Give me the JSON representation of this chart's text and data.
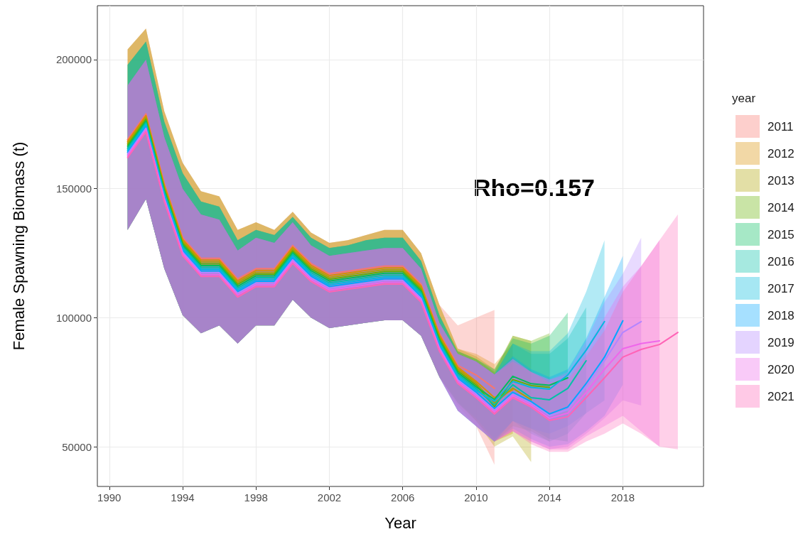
{
  "chart_data": {
    "type": "line",
    "xlabel": "Year",
    "ylabel": "Female Spawning Biomass (t)",
    "legend_title": "year",
    "annotations": [
      "Rho=0.157"
    ],
    "xlim": [
      1989.35,
      2022.4
    ],
    "xticks": [
      1990,
      1994,
      1998,
      2002,
      2006,
      2010,
      2014,
      2018
    ],
    "ylim": [
      34600,
      220900
    ],
    "yticks": [
      50000,
      100000,
      150000,
      200000
    ],
    "grid": true,
    "legend": "right",
    "marker": "none",
    "series": [
      {
        "name": "2011",
        "color": "#f8766d",
        "x": [
          1991,
          1992,
          1993,
          1994,
          1995,
          1996,
          1997,
          1998,
          1999,
          2000,
          2001,
          2002,
          2003,
          2004,
          2005,
          2006,
          2007,
          2008,
          2009,
          2010,
          2011
        ],
        "values": [
          169000,
          179000,
          152000,
          131000,
          123000,
          123000,
          115000,
          119000,
          119000,
          128000,
          121000,
          117000,
          118000,
          119000,
          120000,
          120000,
          113000,
          94000,
          81500,
          77800,
          72600
        ],
        "upper": [
          204000,
          212000,
          180000,
          160000,
          149000,
          147000,
          134000,
          137000,
          134000,
          141000,
          133000,
          129000,
          130000,
          132000,
          134000,
          134000,
          125000,
          105000,
          97000,
          100000,
          103000
        ],
        "lower": [
          134000,
          146000,
          119000,
          101000,
          94000,
          97000,
          90000,
          97000,
          97000,
          107000,
          100000,
          96000,
          97000,
          98000,
          99000,
          99000,
          93000,
          77000,
          66000,
          58000,
          43000
        ]
      },
      {
        "name": "2012",
        "color": "#db8e00",
        "x": [
          1991,
          1992,
          1993,
          1994,
          1995,
          1996,
          1997,
          1998,
          1999,
          2000,
          2001,
          2002,
          2003,
          2004,
          2005,
          2006,
          2007,
          2008,
          2009,
          2010,
          2011,
          2012
        ],
        "values": [
          168300,
          178300,
          151300,
          130300,
          122300,
          122300,
          114300,
          118300,
          118300,
          127300,
          120300,
          116300,
          117300,
          118300,
          119300,
          119300,
          112300,
          93300,
          80800,
          75300,
          69000,
          72000
        ],
        "upper": [
          204000,
          212000,
          180000,
          160000,
          149000,
          147000,
          134000,
          137000,
          134000,
          141000,
          133000,
          129000,
          130000,
          132000,
          134000,
          134000,
          125000,
          105000,
          88000,
          86000,
          82000,
          90000
        ],
        "lower": [
          134000,
          146000,
          119000,
          101000,
          94000,
          97000,
          90000,
          97000,
          97000,
          107000,
          100000,
          96000,
          97000,
          98000,
          99000,
          99000,
          93000,
          77000,
          68000,
          60000,
          52000,
          55000
        ]
      },
      {
        "name": "2013",
        "color": "#aea200",
        "x": [
          1991,
          1992,
          1993,
          1994,
          1995,
          1996,
          1997,
          1998,
          1999,
          2000,
          2001,
          2002,
          2003,
          2004,
          2005,
          2006,
          2007,
          2008,
          2009,
          2010,
          2011,
          2012,
          2013
        ],
        "values": [
          167600,
          177600,
          150600,
          129600,
          121600,
          121600,
          113600,
          117600,
          117600,
          126600,
          119600,
          115600,
          116600,
          117600,
          118600,
          118600,
          111600,
          92600,
          80100,
          74600,
          66900,
          72700,
          68200
        ],
        "upper": [
          204000,
          212000,
          180000,
          160000,
          149000,
          147000,
          134000,
          137000,
          134000,
          141000,
          133000,
          129000,
          130000,
          132000,
          134000,
          134000,
          125000,
          105000,
          88000,
          85000,
          80000,
          93000,
          91000
        ],
        "lower": [
          134000,
          146000,
          119000,
          101000,
          94000,
          97000,
          90000,
          97000,
          97000,
          107000,
          100000,
          96000,
          97000,
          98000,
          99000,
          99000,
          93000,
          77000,
          67000,
          60000,
          50000,
          54000,
          44000
        ]
      },
      {
        "name": "2014",
        "color": "#64b200",
        "x": [
          1991,
          1992,
          1993,
          1994,
          1995,
          1996,
          1997,
          1998,
          1999,
          2000,
          2001,
          2002,
          2003,
          2004,
          2005,
          2006,
          2007,
          2008,
          2009,
          2010,
          2011,
          2012,
          2013,
          2014
        ],
        "values": [
          166900,
          176900,
          149900,
          128900,
          120900,
          120900,
          112900,
          116900,
          116900,
          125900,
          118900,
          114900,
          115900,
          116900,
          117900,
          117900,
          110900,
          91900,
          79400,
          73900,
          65500,
          76000,
          73700,
          73000
        ],
        "upper": [
          198000,
          207000,
          176000,
          156000,
          145000,
          143000,
          130000,
          134000,
          132000,
          139000,
          131000,
          127000,
          128000,
          130000,
          131000,
          131000,
          122000,
          101000,
          87000,
          84000,
          79000,
          93000,
          91000,
          94000
        ],
        "lower": [
          134000,
          146000,
          119000,
          101000,
          94000,
          97000,
          90000,
          97000,
          97000,
          107000,
          100000,
          96000,
          97000,
          98000,
          99000,
          99000,
          93000,
          77000,
          67000,
          60000,
          52000,
          58000,
          56000,
          52000
        ]
      },
      {
        "name": "2015",
        "color": "#00bd5c",
        "x": [
          1991,
          1992,
          1993,
          1994,
          1995,
          1996,
          1997,
          1998,
          1999,
          2000,
          2001,
          2002,
          2003,
          2004,
          2005,
          2006,
          2007,
          2008,
          2009,
          2010,
          2011,
          2012,
          2013,
          2014,
          2015
        ],
        "values": [
          166200,
          176200,
          149200,
          128200,
          120200,
          120200,
          112200,
          116200,
          116200,
          125200,
          118200,
          114200,
          115200,
          116200,
          117200,
          117200,
          110200,
          91200,
          78700,
          73200,
          68300,
          77300,
          74400,
          73800,
          76700
        ],
        "upper": [
          198000,
          207000,
          176000,
          156000,
          145000,
          143000,
          130000,
          134000,
          132000,
          139000,
          131000,
          127000,
          128000,
          130000,
          131000,
          131000,
          122000,
          101000,
          87000,
          84000,
          80000,
          92000,
          90000,
          93000,
          102000
        ],
        "lower": [
          134000,
          146000,
          119000,
          101000,
          94000,
          97000,
          90000,
          97000,
          97000,
          107000,
          100000,
          96000,
          97000,
          98000,
          99000,
          99000,
          93000,
          77000,
          67000,
          61000,
          53000,
          60000,
          57000,
          53000,
          52000
        ]
      },
      {
        "name": "2016",
        "color": "#00c1a7",
        "x": [
          1991,
          1992,
          1993,
          1994,
          1995,
          1996,
          1997,
          1998,
          1999,
          2000,
          2001,
          2002,
          2003,
          2004,
          2005,
          2006,
          2007,
          2008,
          2009,
          2010,
          2011,
          2012,
          2013,
          2014,
          2015,
          2016
        ],
        "values": [
          165500,
          175500,
          148500,
          127500,
          119500,
          119500,
          111500,
          115500,
          115500,
          124500,
          117500,
          113500,
          114500,
          115500,
          116500,
          116500,
          109500,
          90500,
          78000,
          72500,
          66200,
          74000,
          69000,
          68200,
          72600,
          83300
        ],
        "upper": [
          198000,
          207000,
          176000,
          156000,
          145000,
          143000,
          130000,
          134000,
          132000,
          139000,
          131000,
          127000,
          128000,
          130000,
          131000,
          131000,
          122000,
          101000,
          86000,
          83000,
          78000,
          90000,
          86000,
          86000,
          92000,
          104000
        ],
        "lower": [
          134000,
          146000,
          119000,
          101000,
          94000,
          97000,
          90000,
          97000,
          97000,
          107000,
          100000,
          96000,
          97000,
          98000,
          99000,
          99000,
          93000,
          77000,
          64000,
          58000,
          52000,
          60000,
          55000,
          52000,
          55000,
          63000
        ]
      },
      {
        "name": "2017",
        "color": "#00bade",
        "x": [
          1991,
          1992,
          1993,
          1994,
          1995,
          1996,
          1997,
          1998,
          1999,
          2000,
          2001,
          2002,
          2003,
          2004,
          2005,
          2006,
          2007,
          2008,
          2009,
          2010,
          2011,
          2012,
          2013,
          2014,
          2015,
          2016,
          2017
        ],
        "values": [
          164800,
          174800,
          147800,
          126800,
          118800,
          118800,
          110800,
          114800,
          114800,
          123800,
          116800,
          112800,
          113800,
          114800,
          115800,
          115800,
          108800,
          89800,
          77300,
          71800,
          67600,
          75300,
          73000,
          72300,
          77800,
          87400,
          98500
        ],
        "upper": [
          198000,
          207000,
          176000,
          156000,
          145000,
          143000,
          130000,
          134000,
          132000,
          139000,
          131000,
          127000,
          128000,
          130000,
          131000,
          131000,
          122000,
          101000,
          86000,
          83000,
          78000,
          90000,
          87000,
          87000,
          94000,
          110000,
          130000
        ],
        "lower": [
          134000,
          146000,
          119000,
          101000,
          94000,
          97000,
          90000,
          97000,
          97000,
          107000,
          100000,
          96000,
          97000,
          98000,
          99000,
          99000,
          93000,
          77000,
          64000,
          58000,
          52000,
          60000,
          57000,
          55000,
          58000,
          63000,
          68000
        ]
      },
      {
        "name": "2018",
        "color": "#00a6ff",
        "x": [
          1991,
          1992,
          1993,
          1994,
          1995,
          1996,
          1997,
          1998,
          1999,
          2000,
          2001,
          2002,
          2003,
          2004,
          2005,
          2006,
          2007,
          2008,
          2009,
          2010,
          2011,
          2012,
          2013,
          2014,
          2015,
          2016,
          2017,
          2018
        ],
        "values": [
          164100,
          174100,
          147100,
          126100,
          118100,
          118100,
          110100,
          114100,
          114100,
          123100,
          116100,
          112100,
          113100,
          114100,
          115100,
          115100,
          108100,
          89100,
          76600,
          71100,
          64800,
          71100,
          67500,
          62700,
          65400,
          74500,
          84700,
          98800
        ],
        "upper": [
          190000,
          200000,
          170000,
          150000,
          140000,
          138000,
          126000,
          131000,
          129000,
          137000,
          128000,
          124000,
          125000,
          126000,
          127000,
          127000,
          119000,
          98000,
          86000,
          83000,
          78000,
          85000,
          80000,
          77000,
          80000,
          92000,
          108000,
          124000
        ],
        "lower": [
          134000,
          146000,
          119000,
          101000,
          94000,
          97000,
          90000,
          97000,
          97000,
          107000,
          100000,
          96000,
          97000,
          98000,
          99000,
          99000,
          93000,
          77000,
          64000,
          58000,
          52000,
          57000,
          53000,
          50000,
          51000,
          56000,
          62000,
          74000
        ]
      },
      {
        "name": "2019",
        "color": "#b385ff",
        "x": [
          1991,
          1992,
          1993,
          1994,
          1995,
          1996,
          1997,
          1998,
          1999,
          2000,
          2001,
          2002,
          2003,
          2004,
          2005,
          2006,
          2007,
          2008,
          2009,
          2010,
          2011,
          2012,
          2013,
          2014,
          2015,
          2016,
          2017,
          2018,
          2019
        ],
        "values": [
          163400,
          173400,
          146400,
          125400,
          117400,
          117400,
          109400,
          113400,
          113400,
          122400,
          115400,
          111400,
          112400,
          113400,
          114400,
          114400,
          107400,
          88400,
          75900,
          70400,
          64100,
          70400,
          66800,
          62000,
          64400,
          73300,
          83300,
          94300,
          98500
        ],
        "upper": [
          190000,
          200000,
          170000,
          150000,
          140000,
          138000,
          126000,
          131000,
          129000,
          137000,
          128000,
          124000,
          125000,
          126000,
          127000,
          127000,
          119000,
          98000,
          86000,
          83000,
          78000,
          84000,
          79000,
          76000,
          79000,
          91000,
          106000,
          117000,
          131000
        ],
        "lower": [
          134000,
          146000,
          119000,
          101000,
          94000,
          97000,
          90000,
          97000,
          97000,
          107000,
          100000,
          96000,
          97000,
          98000,
          99000,
          99000,
          93000,
          77000,
          64000,
          58000,
          52000,
          56000,
          52000,
          49000,
          50000,
          55000,
          61000,
          68000,
          66000
        ]
      },
      {
        "name": "2020",
        "color": "#ef67eb",
        "x": [
          1991,
          1992,
          1993,
          1994,
          1995,
          1996,
          1997,
          1998,
          1999,
          2000,
          2001,
          2002,
          2003,
          2004,
          2005,
          2006,
          2007,
          2008,
          2009,
          2010,
          2011,
          2012,
          2013,
          2014,
          2015,
          2016,
          2017,
          2018,
          2019,
          2020
        ],
        "values": [
          162700,
          172700,
          145700,
          124700,
          116700,
          116700,
          108700,
          112700,
          112700,
          121700,
          114700,
          110700,
          111700,
          112700,
          113700,
          113700,
          106700,
          87700,
          75200,
          69700,
          63400,
          69700,
          66100,
          61000,
          63000,
          71000,
          80000,
          88000,
          90000,
          91000
        ],
        "upper": [
          190000,
          200000,
          170000,
          150000,
          140000,
          138000,
          126000,
          131000,
          129000,
          137000,
          128000,
          124000,
          125000,
          126000,
          127000,
          127000,
          119000,
          98000,
          86000,
          83000,
          78000,
          84000,
          79000,
          76000,
          78000,
          88000,
          100000,
          112000,
          120000,
          130000
        ],
        "lower": [
          134000,
          146000,
          119000,
          101000,
          94000,
          97000,
          90000,
          97000,
          97000,
          107000,
          100000,
          96000,
          97000,
          98000,
          99000,
          99000,
          93000,
          77000,
          64000,
          58000,
          52000,
          56000,
          52000,
          49000,
          49000,
          54000,
          58000,
          62000,
          56000,
          50000
        ]
      },
      {
        "name": "2021",
        "color": "#ff63b6",
        "x": [
          1991,
          1992,
          1993,
          1994,
          1995,
          1996,
          1997,
          1998,
          1999,
          2000,
          2001,
          2002,
          2003,
          2004,
          2005,
          2006,
          2007,
          2008,
          2009,
          2010,
          2011,
          2012,
          2013,
          2014,
          2015,
          2016,
          2017,
          2018,
          2019,
          2020,
          2021
        ],
        "values": [
          162000,
          172000,
          145000,
          124000,
          116000,
          116000,
          108000,
          112000,
          112000,
          121000,
          114000,
          110000,
          111000,
          112000,
          113000,
          113000,
          106000,
          87000,
          74500,
          69000,
          62700,
          69000,
          65400,
          60200,
          61600,
          69000,
          76700,
          84700,
          87700,
          89600,
          94300
        ],
        "upper": [
          190000,
          200000,
          170000,
          150000,
          140000,
          138000,
          126000,
          131000,
          129000,
          137000,
          128000,
          124000,
          125000,
          126000,
          127000,
          127000,
          119000,
          98000,
          86000,
          83000,
          78000,
          83000,
          79000,
          75000,
          76000,
          85000,
          95000,
          110000,
          120000,
          130000,
          140000
        ],
        "lower": [
          134000,
          146000,
          119000,
          101000,
          94000,
          97000,
          90000,
          97000,
          97000,
          107000,
          100000,
          96000,
          97000,
          98000,
          99000,
          99000,
          93000,
          77000,
          64000,
          58000,
          52000,
          56000,
          51000,
          48000,
          48000,
          52000,
          55000,
          59000,
          55000,
          50000,
          49000
        ]
      }
    ]
  }
}
